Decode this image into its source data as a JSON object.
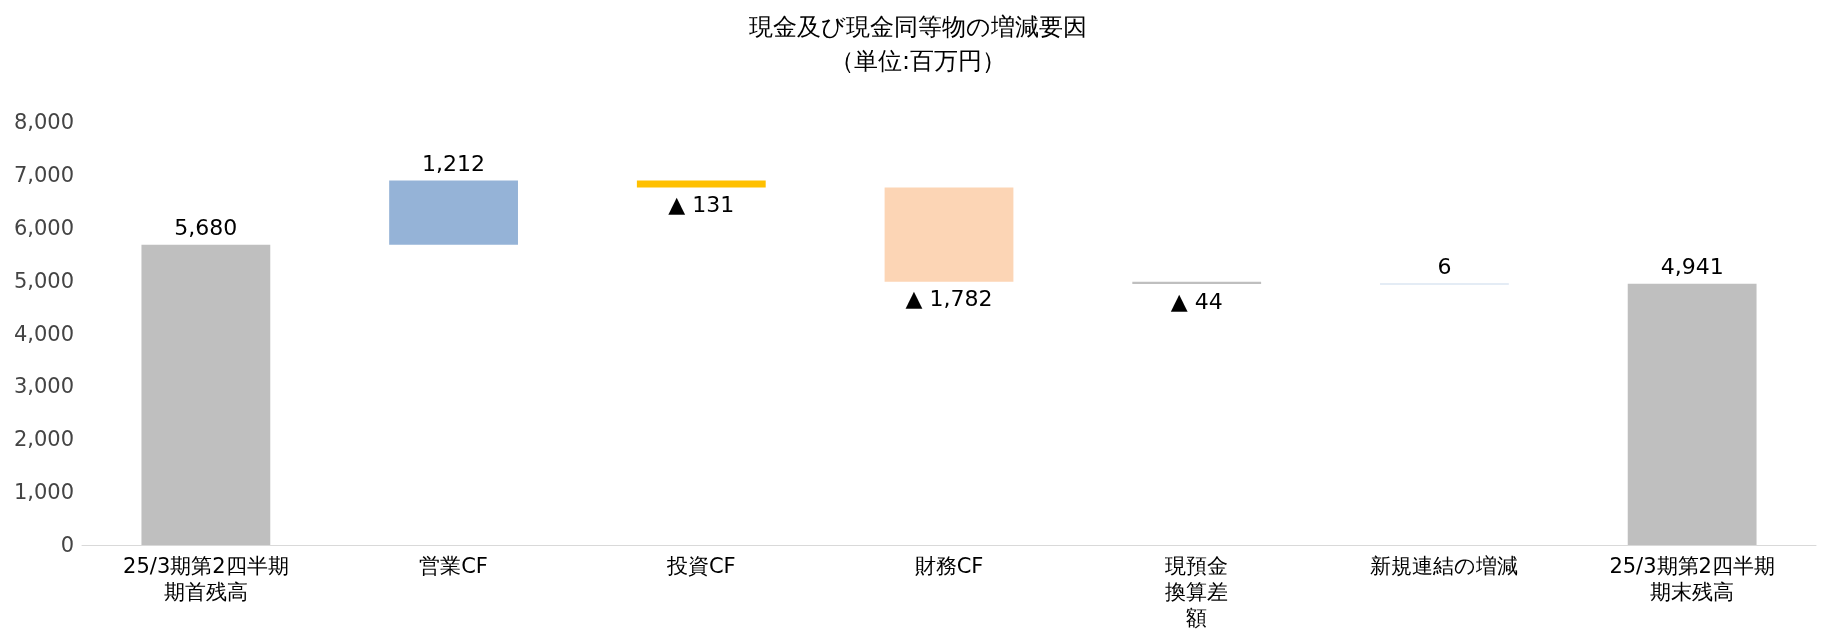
{
  "chart_data": {
    "type": "bar",
    "title": "現金及び現金同等物の増減要因",
    "subtitle": "（単位:百万円）",
    "categories": [
      "25/3期第2四半期期首残高",
      "営業CF",
      "投資CF",
      "財務CF",
      "現預金換算差額",
      "新規連結の増減",
      "25/3期第2四半期期末残高"
    ],
    "values": [
      5680,
      1212,
      -131,
      -1782,
      -44,
      6,
      4941
    ],
    "base": [
      0,
      5680,
      6892,
      6761,
      4979,
      4935,
      0
    ],
    "colors": [
      "#bfbfbf",
      "#95b3d7",
      "#ffc000",
      "#fcd5b5",
      "#bfbfbf",
      "#95b3d7",
      "#bfbfbf"
    ],
    "value_labels": [
      "5,680",
      "1,212",
      "▲ 131",
      "▲ 1,782",
      "▲ 44",
      "6",
      "4,941"
    ],
    "ylim": [
      0,
      8000
    ],
    "yticks": [
      0,
      {
        "value": 1000,
        "label": "1,000"
      },
      {
        "value": 2000,
        "label": "2,000"
      },
      {
        "value": 3000,
        "label": "3,000"
      },
      {
        "value": 4000,
        "label": "4,000"
      },
      {
        "value": 5000,
        "label": "5,000"
      },
      {
        "value": 6000,
        "label": "6,000"
      },
      {
        "value": 7000,
        "label": "7,000"
      },
      {
        "value": 8000,
        "label": "8,000"
      }
    ],
    "grid": false
  }
}
